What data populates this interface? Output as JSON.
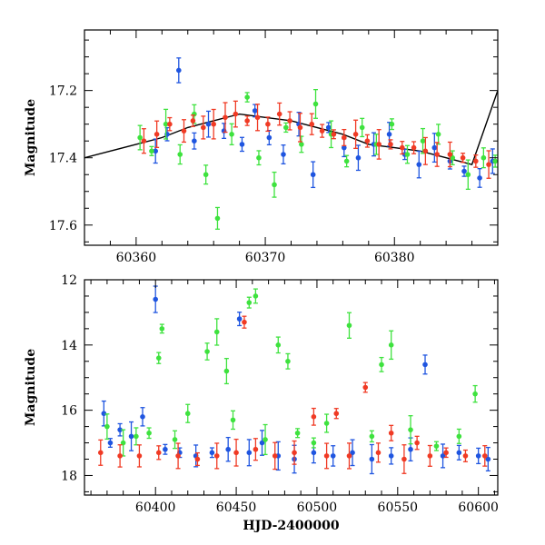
{
  "colors": {
    "blue": "#1f55e0",
    "green": "#3ee23e",
    "red": "#f03a24",
    "curve": "#000000"
  },
  "chart_data": [
    {
      "type": "scatter",
      "xlabel": "",
      "ylabel": "Magnitude",
      "xlim": [
        60356,
        60388
      ],
      "ylim": [
        17.66,
        17.02
      ],
      "y_inverted": true,
      "x_ticks": [
        60360,
        60370,
        60380
      ],
      "y_ticks": [
        17.2,
        17.4,
        17.6
      ],
      "model_curve": {
        "x": [
          60356,
          60358,
          60360,
          60362,
          60364,
          60366,
          60368,
          60370,
          60372,
          60374,
          60376,
          60378,
          60380,
          60382,
          60384,
          60386,
          60388
        ],
        "y": [
          17.4,
          17.38,
          17.36,
          17.34,
          17.31,
          17.29,
          17.27,
          17.28,
          17.29,
          17.31,
          17.33,
          17.36,
          17.37,
          17.38,
          17.4,
          17.42,
          17.2
        ]
      },
      "series": [
        {
          "color": "blue",
          "x": [
            60361.5,
            60362.4,
            60363.3,
            60364.5,
            60365.6,
            60366.8,
            60368.2,
            60369.2,
            60370.3,
            60371.4,
            60372.6,
            60373.7,
            60374.9,
            60376.1,
            60377.2,
            60378.4,
            60379.6,
            60380.8,
            60381.9,
            60383.1,
            60384.3,
            60385.4,
            60386.6,
            60387.6
          ],
          "y": [
            17.38,
            17.33,
            17.14,
            17.35,
            17.3,
            17.32,
            17.36,
            17.26,
            17.34,
            17.39,
            17.3,
            17.45,
            17.31,
            17.37,
            17.4,
            17.36,
            17.33,
            17.39,
            17.42,
            17.37,
            17.41,
            17.44,
            17.46,
            17.41
          ]
        },
        {
          "color": "green",
          "x": [
            60360.3,
            60361.2,
            60362.3,
            60363.4,
            60364.5,
            60365.4,
            60366.3,
            60367.4,
            60368.6,
            60369.5,
            60370.7,
            60371.6,
            60372.8,
            60373.9,
            60375.1,
            60376.3,
            60377.5,
            60378.6,
            60379.8,
            60381.0,
            60382.2,
            60383.4,
            60384.5,
            60385.7,
            60386.9,
            60387.8
          ],
          "y": [
            17.34,
            17.38,
            17.3,
            17.39,
            17.27,
            17.45,
            17.58,
            17.33,
            17.22,
            17.4,
            17.48,
            17.31,
            17.36,
            17.24,
            17.33,
            17.41,
            17.31,
            17.36,
            17.3,
            17.39,
            17.35,
            17.33,
            17.4,
            17.45,
            17.4,
            17.41
          ]
        },
        {
          "color": "red",
          "x": [
            60360.6,
            60361.6,
            60362.6,
            60363.7,
            60364.4,
            60365.2,
            60366.0,
            60366.9,
            60367.7,
            60368.6,
            60369.4,
            60370.2,
            60371.1,
            60371.9,
            60372.7,
            60373.6,
            60374.4,
            60375.3,
            60376.1,
            60377.0,
            60377.9,
            60378.8,
            60379.7,
            60380.6,
            60381.5,
            60382.4,
            60383.3,
            60384.3,
            60385.3,
            60386.3,
            60387.3
          ],
          "y": [
            17.35,
            17.33,
            17.3,
            17.32,
            17.29,
            17.31,
            17.3,
            17.28,
            17.27,
            17.29,
            17.28,
            17.3,
            17.27,
            17.29,
            17.31,
            17.3,
            17.32,
            17.33,
            17.34,
            17.33,
            17.35,
            17.36,
            17.36,
            17.37,
            17.37,
            17.38,
            17.39,
            17.39,
            17.4,
            17.41,
            17.42
          ]
        }
      ]
    },
    {
      "type": "scatter",
      "xlabel": "HJD-2400000",
      "ylabel": "Magnitude",
      "xlim": [
        60356,
        60612
      ],
      "ylim": [
        18.6,
        12.0
      ],
      "y_inverted": true,
      "x_ticks": [
        60400,
        60450,
        60500,
        60550,
        60600
      ],
      "y_ticks": [
        12,
        14,
        16,
        18
      ],
      "series": [
        {
          "color": "blue",
          "x": [
            60368,
            60372,
            60378,
            60385,
            60392,
            60400,
            60406,
            60415,
            60425,
            60435,
            60445,
            60452,
            60458,
            60466,
            60476,
            60486,
            60498,
            60510,
            60522,
            60534,
            60546,
            60558,
            60567,
            60578,
            60588,
            60600,
            60606
          ],
          "y": [
            16.1,
            17.0,
            16.6,
            16.8,
            16.2,
            12.6,
            17.2,
            17.3,
            17.4,
            17.3,
            17.2,
            13.2,
            17.3,
            17.0,
            17.4,
            17.5,
            17.3,
            17.4,
            17.3,
            17.5,
            17.4,
            17.2,
            14.6,
            17.4,
            17.3,
            17.4,
            17.5
          ]
        },
        {
          "color": "green",
          "x": [
            60370,
            60380,
            60388,
            60396,
            60402,
            60404,
            60412,
            60420,
            60432,
            60438,
            60444,
            60448,
            60458,
            60462,
            60468,
            60476,
            60482,
            60488,
            60498,
            60506,
            60520,
            60534,
            60540,
            60546,
            60558,
            60574,
            60588,
            60598
          ],
          "y": [
            16.5,
            17.0,
            16.8,
            16.7,
            14.4,
            13.5,
            16.9,
            16.1,
            14.2,
            13.6,
            14.8,
            16.3,
            12.7,
            12.5,
            16.9,
            14.0,
            14.5,
            16.7,
            17.0,
            16.4,
            13.4,
            16.8,
            14.6,
            14.0,
            16.6,
            17.1,
            16.8,
            15.5
          ]
        },
        {
          "color": "red",
          "x": [
            60366,
            60378,
            60390,
            60402,
            60414,
            60426,
            60438,
            60450,
            60455,
            60462,
            60474,
            60486,
            60498,
            60506,
            60512,
            60520,
            60530,
            60538,
            60546,
            60554,
            60562,
            60570,
            60580,
            60592,
            60604
          ],
          "y": [
            17.3,
            17.4,
            17.4,
            17.3,
            17.4,
            17.5,
            17.4,
            17.3,
            13.3,
            17.2,
            17.4,
            17.3,
            16.2,
            17.4,
            16.1,
            17.4,
            15.3,
            17.3,
            16.7,
            17.5,
            17.0,
            17.4,
            17.3,
            17.4,
            17.4
          ]
        }
      ]
    }
  ]
}
